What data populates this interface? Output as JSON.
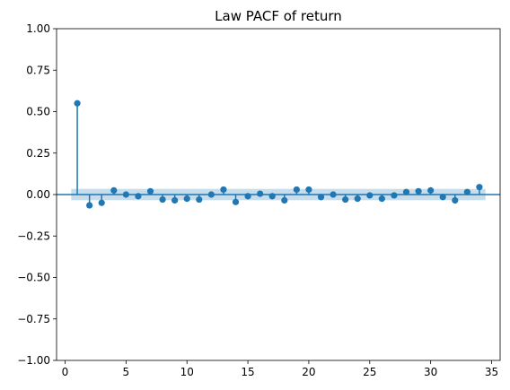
{
  "chart_data": {
    "type": "scatter",
    "style": "stem",
    "title": "Law PACF of return",
    "xlabel": "",
    "ylabel": "",
    "xlim": [
      -0.7,
      35.7
    ],
    "ylim": [
      -1.0,
      1.0
    ],
    "x_ticks": [
      0,
      5,
      10,
      15,
      20,
      25,
      30,
      35
    ],
    "x_tick_labels": [
      "0",
      "5",
      "10",
      "15",
      "20",
      "25",
      "30",
      "35"
    ],
    "y_ticks": [
      1.0,
      0.75,
      0.5,
      0.25,
      0.0,
      -0.25,
      -0.5,
      -0.75,
      -1.0
    ],
    "y_tick_labels": [
      "1.00",
      "0.75",
      "0.50",
      "0.25",
      "0.00",
      "−0.25",
      "−0.50",
      "−0.75",
      "−1.00"
    ],
    "grid": false,
    "legend": "none",
    "confidence_band": {
      "lower": -0.034,
      "upper": 0.034,
      "x_start": 0.5,
      "x_end": 34.5
    },
    "x": [
      1,
      2,
      3,
      4,
      5,
      6,
      7,
      8,
      9,
      10,
      11,
      12,
      13,
      14,
      15,
      16,
      17,
      18,
      19,
      20,
      21,
      22,
      23,
      24,
      25,
      26,
      27,
      28,
      29,
      30,
      31,
      32,
      33,
      34
    ],
    "values": [
      0.55,
      -0.065,
      -0.05,
      0.025,
      0.0,
      -0.01,
      0.02,
      -0.03,
      -0.035,
      -0.025,
      -0.03,
      0.0,
      0.03,
      -0.045,
      -0.01,
      0.005,
      -0.01,
      -0.035,
      0.03,
      0.03,
      -0.015,
      0.0,
      -0.03,
      -0.025,
      -0.005,
      -0.025,
      -0.005,
      0.015,
      0.02,
      0.025,
      -0.015,
      -0.035,
      0.015,
      0.045
    ],
    "colors": {
      "series": "#1f77b4",
      "band": "#1f77b4",
      "axes": "#000000"
    }
  }
}
